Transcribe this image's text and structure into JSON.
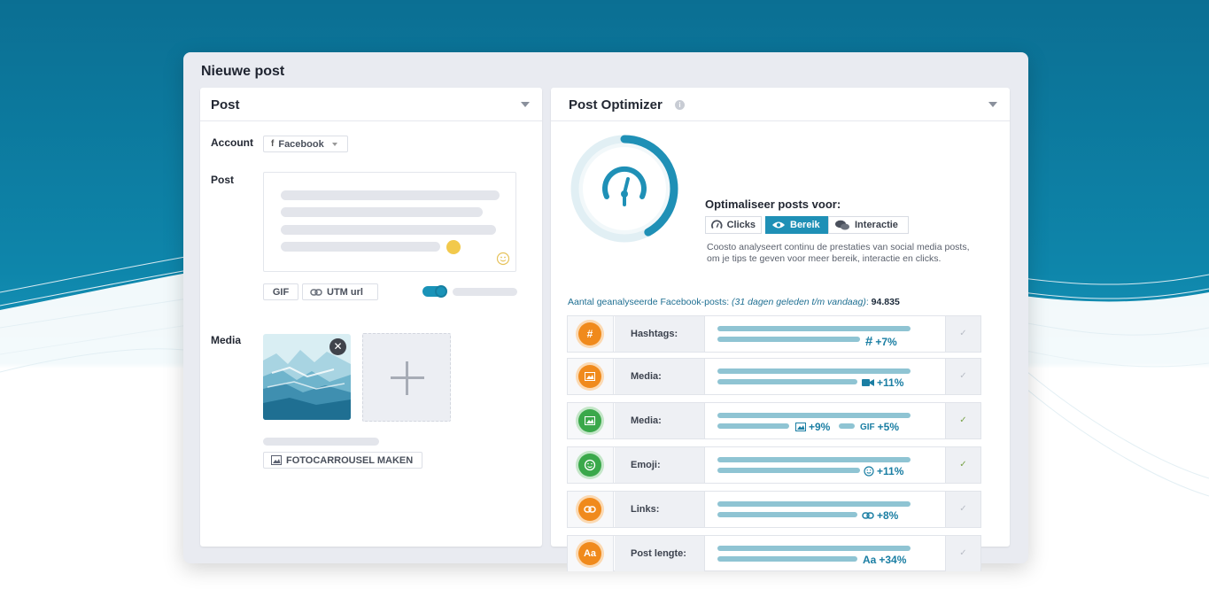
{
  "window": {
    "title": "Nieuwe post"
  },
  "post_panel": {
    "title": "Post",
    "account_label": "Account",
    "account_value": "Facebook",
    "post_label": "Post",
    "gif_label": "GIF",
    "utm_label": "UTM url",
    "media_label": "Media",
    "carousel_label": "FOTOCARROUSEL MAKEN"
  },
  "optimizer": {
    "title": "Post Optimizer",
    "optimize_heading": "Optimaliseer posts voor:",
    "segments": [
      {
        "label": "Clicks",
        "icon": "gauge-icon",
        "active": false
      },
      {
        "label": "Bereik",
        "icon": "eye-icon",
        "active": true
      },
      {
        "label": "Interactie",
        "icon": "chat-icon",
        "active": false
      }
    ],
    "description_line1": "Coosto analyseert continu de prestaties van social media posts,",
    "description_line2": "om je tips te geven voor meer bereik, interactie en clicks.",
    "analyzed_prefix": "Aantal geanalyseerde Facebook-posts: ",
    "analyzed_period": "(31 dagen geleden t/m vandaag)",
    "analyzed_colon": ": ",
    "analyzed_count": "94.835",
    "gauge_progress": 0.42,
    "rows": [
      {
        "label": "Hashtags:",
        "icon": "hashtag-icon",
        "icon_color": "#f08a1c",
        "value_icon": "#",
        "value": "+7%",
        "checked": false
      },
      {
        "label": "Media:",
        "icon": "image-icon",
        "icon_color": "#f08a1c",
        "value_icon": "video-icon",
        "value": "+11%",
        "checked": false
      },
      {
        "label": "Media:",
        "icon": "image-icon",
        "icon_color": "#3aa84a",
        "value_icon": "image-icon",
        "value": "+9%",
        "value2_icon": "GIF",
        "value2": "+5%",
        "checked": true
      },
      {
        "label": "Emoji:",
        "icon": "smiley-icon",
        "icon_color": "#3aa84a",
        "value_icon": "smiley-icon",
        "value": "+11%",
        "checked": true
      },
      {
        "label": "Links:",
        "icon": "link-icon",
        "icon_color": "#f08a1c",
        "value_icon": "link-icon",
        "value": "+8%",
        "checked": false
      },
      {
        "label": "Post lengte:",
        "icon": "text-icon",
        "icon_color": "#f08a1c",
        "icon_text": "Aa",
        "value_icon": "Aa",
        "value": "+34%",
        "checked": false
      }
    ],
    "check_mark": "✓"
  },
  "colors": {
    "accent": "#1f90b6",
    "orange": "#f08a1c",
    "green": "#3aa84a",
    "bar": "#8fc4d3"
  }
}
